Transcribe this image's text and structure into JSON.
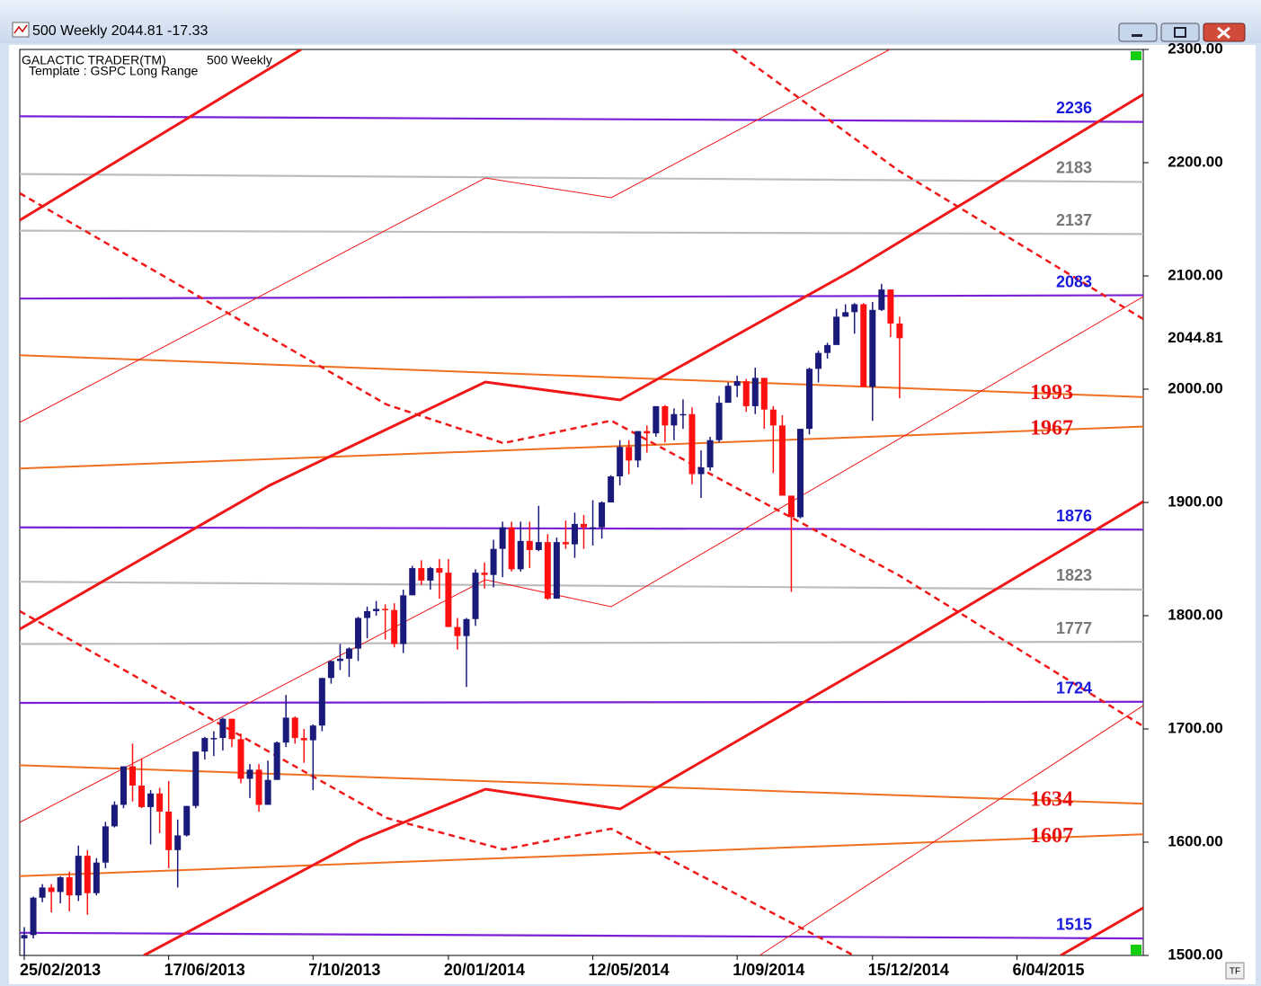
{
  "window": {
    "title": "500 Weekly 2044.81   -17.33"
  },
  "chart_data": {
    "type": "candlestick",
    "header": "GALACTIC TRADER(TM)",
    "subheader": "500 Weekly",
    "template": "Template : GSPC Long Range",
    "up_color": "#1a1a7a",
    "down_color": "#ff1010",
    "xlim": [
      -0.5,
      124
    ],
    "ylim": [
      1500,
      2300
    ],
    "yticks": [
      {
        "value": 1500,
        "label": "1500.00"
      },
      {
        "value": 1600,
        "label": "1600.00"
      },
      {
        "value": 1700,
        "label": "1700.00"
      },
      {
        "value": 1800,
        "label": "1800.00"
      },
      {
        "value": 1900,
        "label": "1900.00"
      },
      {
        "value": 2000,
        "label": "2000.00"
      },
      {
        "value": 2100,
        "label": "2100.00"
      },
      {
        "value": 2200,
        "label": "2200.00"
      },
      {
        "value": 2300,
        "label": "2300.00"
      }
    ],
    "xticks": [
      {
        "value": 0,
        "label": "25/02/2013"
      },
      {
        "value": 16,
        "label": "17/06/2013"
      },
      {
        "value": 32,
        "label": "7/10/2013"
      },
      {
        "value": 47,
        "label": "20/01/2014"
      },
      {
        "value": 63,
        "label": "12/05/2014"
      },
      {
        "value": 79,
        "label": "1/09/2014"
      },
      {
        "value": 94,
        "label": "15/12/2014"
      },
      {
        "value": 110,
        "label": "6/04/2015"
      }
    ],
    "last_price": {
      "value": 2044.81,
      "label": "2044.81"
    },
    "levels": [
      {
        "value": 2236,
        "start": 2241,
        "color": "#7a1fd6",
        "label_color": "#1a1adc"
      },
      {
        "value": 2183,
        "start": 2190,
        "color": "#bdbdbd",
        "label_color": "#777777"
      },
      {
        "value": 2137,
        "start": 2140,
        "color": "#bdbdbd",
        "label_color": "#777777"
      },
      {
        "value": 2083,
        "start": 2080,
        "color": "#7a1fd6",
        "label_color": "#1a1adc"
      },
      {
        "value": 1993,
        "start": 2030,
        "color": "#f07020",
        "label_color": "#e81010"
      },
      {
        "value": 1967,
        "start": 1930,
        "color": "#f07020",
        "label_color": "#e81010"
      },
      {
        "value": 1876,
        "start": 1878,
        "color": "#7a1fd6",
        "label_color": "#1a1adc"
      },
      {
        "value": 1823,
        "start": 1830,
        "color": "#bdbdbd",
        "label_color": "#777777"
      },
      {
        "value": 1777,
        "start": 1775,
        "color": "#bdbdbd",
        "label_color": "#777777"
      },
      {
        "value": 1724,
        "start": 1723,
        "color": "#7a1fd6",
        "label_color": "#1a1adc"
      },
      {
        "value": 1634,
        "start": 1668,
        "color": "#f07020",
        "label_color": "#e81010"
      },
      {
        "value": 1607,
        "start": 1570,
        "color": "#f07020",
        "label_color": "#e81010"
      },
      {
        "value": 1515,
        "start": 1520,
        "color": "#7a1fd6",
        "label_color": "#1a1adc"
      }
    ],
    "open": [
      1515,
      1518,
      1551,
      1560,
      1556,
      1569,
      1553,
      1588,
      1555,
      1582,
      1614,
      1633,
      1667,
      1650,
      1631,
      1643,
      1627,
      1593,
      1606,
      1632,
      1680,
      1692,
      1692,
      1709,
      1691,
      1656,
      1664,
      1633,
      1655,
      1688,
      1710,
      1692,
      1690,
      1703,
      1745,
      1760,
      1762,
      1771,
      1798,
      1804,
      1806,
      1805,
      1775,
      1818,
      1842,
      1831,
      1842,
      1838,
      1790,
      1782,
      1797,
      1838,
      1836,
      1859,
      1878,
      1841,
      1866,
      1858,
      1865,
      1815,
      1865,
      1863,
      1881,
      1878,
      1878,
      1900,
      1923,
      1949,
      1937,
      1963,
      1961,
      1985,
      1968,
      1978,
      1978,
      1925,
      1931,
      1955,
      1988,
      2003,
      2007,
      1985,
      2010,
      1982,
      1968,
      1906,
      1887,
      1965,
      2018,
      2032,
      2039,
      2064,
      2068,
      2075,
      2002,
      2070,
      2088,
      2058
    ],
    "high": [
      1525,
      1552,
      1563,
      1563,
      1570,
      1574,
      1597,
      1593,
      1586,
      1618,
      1636,
      1667,
      1687,
      1674,
      1646,
      1648,
      1654,
      1620,
      1632,
      1680,
      1693,
      1698,
      1710,
      1709,
      1696,
      1669,
      1669,
      1672,
      1689,
      1730,
      1711,
      1700,
      1704,
      1745,
      1760,
      1775,
      1772,
      1799,
      1808,
      1813,
      1810,
      1811,
      1823,
      1844,
      1849,
      1843,
      1850,
      1850,
      1798,
      1798,
      1841,
      1847,
      1867,
      1883,
      1883,
      1883,
      1883,
      1897,
      1872,
      1869,
      1884,
      1891,
      1889,
      1902,
      1901,
      1924,
      1955,
      1955,
      1963,
      1968,
      1985,
      1986,
      1983,
      1991,
      1984,
      1946,
      1958,
      1994,
      2006,
      2012,
      2009,
      2019,
      2010,
      1985,
      1977,
      1906,
      1965,
      2019,
      2034,
      2041,
      2071,
      2075,
      2076,
      2076,
      2077,
      2093,
      2088,
      2064
    ],
    "low": [
      1485,
      1515,
      1547,
      1538,
      1546,
      1539,
      1548,
      1536,
      1553,
      1577,
      1613,
      1630,
      1636,
      1630,
      1598,
      1608,
      1577,
      1560,
      1605,
      1630,
      1673,
      1676,
      1681,
      1684,
      1652,
      1639,
      1627,
      1633,
      1655,
      1684,
      1687,
      1670,
      1646,
      1698,
      1740,
      1752,
      1746,
      1760,
      1780,
      1800,
      1779,
      1772,
      1767,
      1818,
      1827,
      1823,
      1815,
      1790,
      1770,
      1737,
      1791,
      1824,
      1825,
      1834,
      1839,
      1839,
      1842,
      1857,
      1814,
      1815,
      1859,
      1851,
      1859,
      1862,
      1868,
      1900,
      1915,
      1925,
      1931,
      1944,
      1958,
      1953,
      1955,
      1965,
      1916,
      1904,
      1928,
      1953,
      1990,
      1993,
      1980,
      1978,
      1965,
      1926,
      1906,
      1821,
      1886,
      1960,
      2006,
      2027,
      2040,
      2064,
      2049,
      2002,
      1972,
      2069,
      2046,
      1992
    ],
    "close": [
      1518,
      1551,
      1560,
      1556,
      1569,
      1553,
      1588,
      1555,
      1582,
      1614,
      1633,
      1667,
      1650,
      1631,
      1643,
      1627,
      1593,
      1606,
      1632,
      1680,
      1692,
      1692,
      1709,
      1691,
      1656,
      1664,
      1633,
      1655,
      1688,
      1710,
      1692,
      1690,
      1703,
      1745,
      1760,
      1762,
      1771,
      1798,
      1804,
      1806,
      1805,
      1775,
      1818,
      1842,
      1831,
      1842,
      1838,
      1790,
      1782,
      1797,
      1838,
      1836,
      1859,
      1878,
      1841,
      1866,
      1858,
      1865,
      1815,
      1865,
      1863,
      1881,
      1878,
      1878,
      1900,
      1923,
      1949,
      1937,
      1963,
      1961,
      1985,
      1968,
      1978,
      1978,
      1925,
      1931,
      1955,
      1988,
      2003,
      2007,
      1985,
      2010,
      1982,
      1968,
      1906,
      1887,
      1965,
      2018,
      2032,
      2039,
      2064,
      2068,
      2075,
      2002,
      2070,
      2088,
      2058,
      2045
    ]
  }
}
